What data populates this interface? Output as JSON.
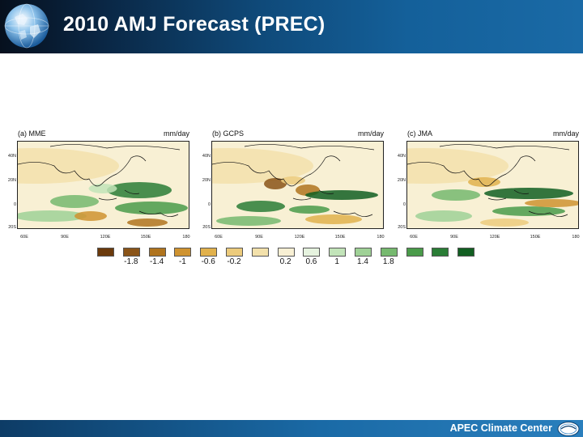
{
  "header": {
    "title": "2010 AMJ Forecast (PREC)",
    "logo_icon": "globe-icon"
  },
  "footer": {
    "org": "APEC Climate Center",
    "logo_icon": "apcc-logo-icon"
  },
  "panels": [
    {
      "label": "(a) MME",
      "unit": "mm/day",
      "lat_ticks": [
        "40N",
        "20N",
        "0",
        "20S"
      ],
      "lon_ticks": [
        "60E",
        "90E",
        "120E",
        "150E",
        "180"
      ]
    },
    {
      "label": "(b) GCPS",
      "unit": "mm/day",
      "lat_ticks": [
        "40N",
        "20N",
        "0",
        "20S"
      ],
      "lon_ticks": [
        "60E",
        "90E",
        "120E",
        "150E",
        "180"
      ]
    },
    {
      "label": "(c) JMA",
      "unit": "mm/day",
      "lat_ticks": [
        "40N",
        "20N",
        "0",
        "20S"
      ],
      "lon_ticks": [
        "60E",
        "90E",
        "120E",
        "150E",
        "180"
      ]
    }
  ],
  "colorbar": {
    "colors": [
      "#6b3a0c",
      "#8a5418",
      "#b0741e",
      "#cf9330",
      "#e1b14c",
      "#eccb7c",
      "#f3e1ab",
      "#f8f0d4",
      "#e6f3df",
      "#c2e4b9",
      "#9fd196",
      "#76b96f",
      "#4a9b4a",
      "#2a7d36",
      "#125f22"
    ],
    "labels": [
      "-1.8",
      "-1.4",
      "-1",
      "-0.6",
      "-0.2",
      "0.2",
      "0.6",
      "1",
      "1.4",
      "1.8"
    ]
  }
}
